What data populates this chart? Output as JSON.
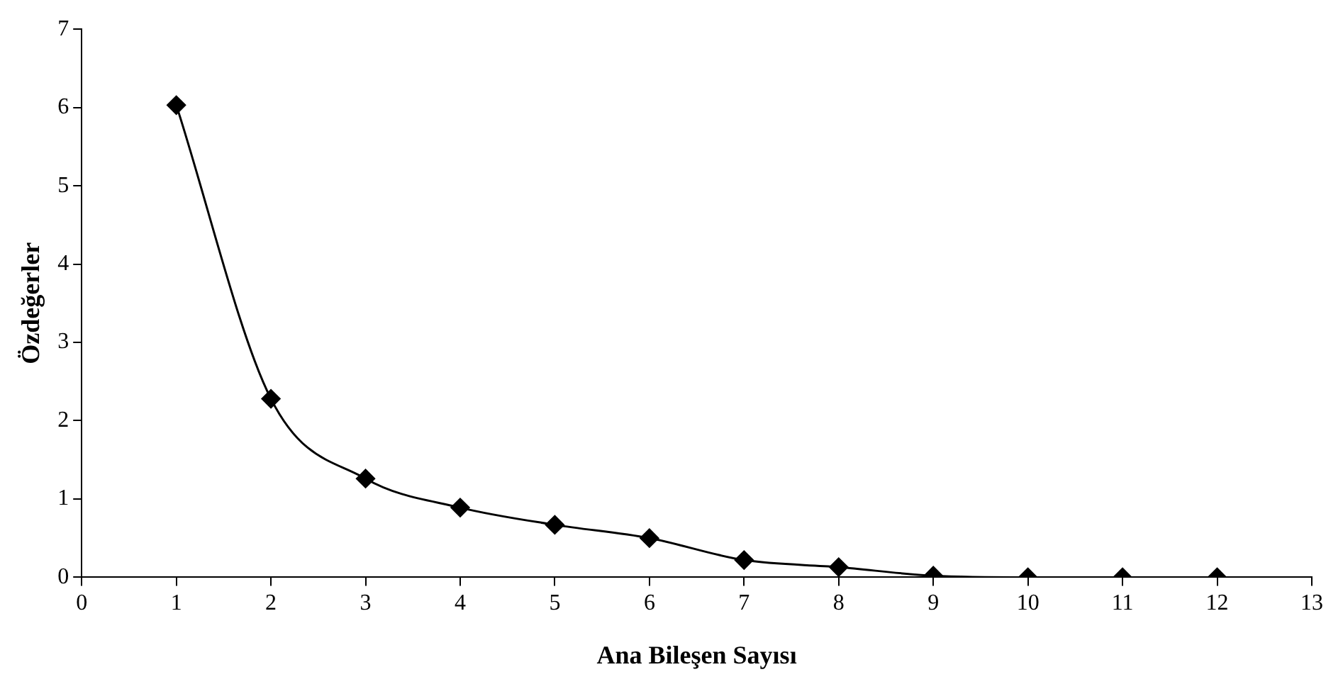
{
  "chart_data": {
    "type": "line",
    "xlabel": "Ana Bileşen Sayısı",
    "ylabel": "Özdeğerler",
    "x": [
      1,
      2,
      3,
      4,
      5,
      6,
      7,
      8,
      9,
      10,
      11,
      12
    ],
    "series": [
      {
        "color": "#000000",
        "values": [
          6.03,
          2.28,
          1.26,
          0.89,
          0.67,
          0.5,
          0.22,
          0.13,
          0.02,
          0,
          0,
          0
        ]
      }
    ],
    "xlim": [
      0,
      13
    ],
    "xticks": [
      0,
      1,
      2,
      3,
      4,
      5,
      6,
      7,
      8,
      9,
      10,
      11,
      12,
      13
    ],
    "ylim": [
      0,
      7
    ],
    "yticks": [
      0,
      1,
      2,
      3,
      4,
      5,
      6,
      7
    ],
    "grid": false,
    "legend": false,
    "marker": "diamond",
    "line_style": "solid"
  }
}
